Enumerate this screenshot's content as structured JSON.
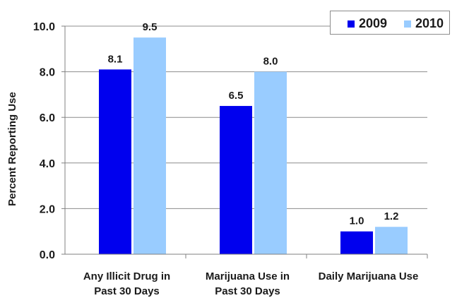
{
  "chart_data": {
    "type": "bar",
    "categories": [
      [
        "Any Illicit Drug in",
        "Past 30 Days"
      ],
      [
        "Marijuana Use in",
        "Past 30 Days"
      ],
      [
        "Daily Marijuana Use"
      ]
    ],
    "series": [
      {
        "name": "2009",
        "values": [
          8.1,
          6.5,
          1.0
        ],
        "color": "#0000ee"
      },
      {
        "name": "2010",
        "values": [
          9.5,
          8.0,
          1.2
        ],
        "color": "#99ccff"
      }
    ],
    "value_labels": [
      [
        "8.1",
        "6.5",
        "1.0"
      ],
      [
        "9.5",
        "8.0",
        "1.2"
      ]
    ],
    "ylabel": "Percent Reporting Use",
    "ylim": [
      0,
      10
    ],
    "yticks": [
      "0.0",
      "2.0",
      "4.0",
      "6.0",
      "8.0",
      "10.0"
    ],
    "grid": true,
    "legend_position": "top-right"
  }
}
